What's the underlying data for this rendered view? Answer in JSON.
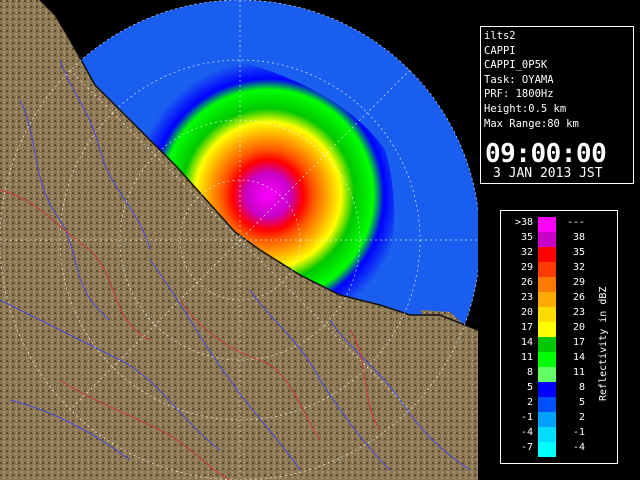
{
  "info": {
    "lines": [
      "ilts2",
      "CAPPI",
      "CAPPI_0P5K",
      "Task: OYAMA",
      "PRF: 1800Hz",
      "Height:0.5 km",
      "Max Range:80 km"
    ],
    "time": "09:00:00",
    "date": "3 JAN 2013 JST"
  },
  "legend": {
    "title": "Reflectivity in dBZ",
    "rows": [
      {
        "lo": ">38",
        "hi": "---",
        "color": "#ff00ff"
      },
      {
        "lo": "35",
        "hi": "38",
        "color": "#c800c8"
      },
      {
        "lo": "32",
        "hi": "35",
        "color": "#ff0000"
      },
      {
        "lo": "29",
        "hi": "32",
        "color": "#ff3c00"
      },
      {
        "lo": "26",
        "hi": "29",
        "color": "#ff7800"
      },
      {
        "lo": "23",
        "hi": "26",
        "color": "#ffaa00"
      },
      {
        "lo": "20",
        "hi": "23",
        "color": "#ffdc00"
      },
      {
        "lo": "17",
        "hi": "20",
        "color": "#ffff00"
      },
      {
        "lo": "14",
        "hi": "17",
        "color": "#00c800"
      },
      {
        "lo": "11",
        "hi": "14",
        "color": "#00ff00"
      },
      {
        "lo": "8",
        "hi": "11",
        "color": "#64ff64"
      },
      {
        "lo": "5",
        "hi": "8",
        "color": "#0000ff"
      },
      {
        "lo": "2",
        "hi": "5",
        "color": "#0050ff"
      },
      {
        "lo": "-1",
        "hi": "2",
        "color": "#00a0ff"
      },
      {
        "lo": "-4",
        "hi": "-1",
        "color": "#00dcff"
      },
      {
        "lo": "-7",
        "hi": "-4",
        "color": "#00ffff"
      }
    ]
  },
  "colors": {
    "land": "#7a6a4c",
    "ocean": "#1a5ef0",
    "rivers": "#4a4ad8",
    "borders": "#c83c3c",
    "range_rings": "#ffffff"
  }
}
